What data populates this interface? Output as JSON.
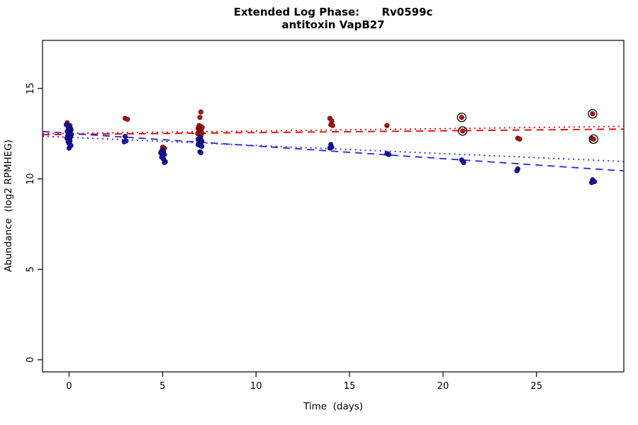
{
  "chart_data": {
    "type": "scatter",
    "title": "Extended Log Phase:      Rv0599c",
    "subtitle": "antitoxin VapB27",
    "xlabel": "Time  (days)",
    "ylabel": "Abundance  (log2 RPMHEG)",
    "x_range": [
      -1.42,
      29.67
    ],
    "y_range": [
      -0.67,
      17.66
    ],
    "x_ticks": [
      0,
      5,
      10,
      15,
      20,
      25
    ],
    "y_ticks": [
      0,
      5,
      10,
      15
    ],
    "grid": false,
    "legend": "none",
    "series": [
      {
        "name": "red-series",
        "point_color": "#b81414",
        "point_edge": "#3a0000",
        "points": [
          [
            -0.1,
            13.1
          ],
          [
            0.05,
            12.95
          ],
          [
            0,
            12.8
          ],
          [
            0.1,
            12.7
          ],
          [
            -0.05,
            12.6
          ],
          [
            0,
            12.5
          ],
          [
            0.08,
            12.45
          ],
          [
            -0.08,
            12.35
          ],
          [
            0,
            12.25
          ],
          [
            3,
            13.35
          ],
          [
            3.12,
            13.3
          ],
          [
            5,
            11.75
          ],
          [
            5.1,
            11.7
          ],
          [
            4.95,
            11.55
          ],
          [
            7.05,
            13.7
          ],
          [
            7,
            13.4
          ],
          [
            6.95,
            12.95
          ],
          [
            7.05,
            12.9
          ],
          [
            7.12,
            12.85
          ],
          [
            6.9,
            12.8
          ],
          [
            7,
            12.75
          ],
          [
            7.05,
            12.7
          ],
          [
            6.95,
            12.65
          ],
          [
            7,
            12.6
          ],
          [
            7.1,
            12.55
          ],
          [
            6.88,
            12.5
          ],
          [
            7,
            12.45
          ],
          [
            7.05,
            12.38
          ],
          [
            13.95,
            13.35
          ],
          [
            14.05,
            13.2
          ],
          [
            14,
            13.0
          ],
          [
            14.1,
            12.95
          ],
          [
            17,
            12.95
          ],
          [
            21,
            13.4
          ],
          [
            21.05,
            12.65
          ],
          [
            24,
            12.25
          ],
          [
            24.1,
            12.2
          ],
          [
            28,
            13.6
          ],
          [
            27.95,
            12.25
          ],
          [
            28.05,
            12.2
          ]
        ]
      },
      {
        "name": "blue-series",
        "point_color": "#1414b8",
        "point_edge": "#000030",
        "points": [
          [
            -0.15,
            13.0
          ],
          [
            0,
            12.9
          ],
          [
            -0.05,
            12.82
          ],
          [
            0.1,
            12.75
          ],
          [
            0,
            12.7
          ],
          [
            -0.1,
            12.62
          ],
          [
            0.05,
            12.55
          ],
          [
            0,
            12.5
          ],
          [
            0.12,
            12.45
          ],
          [
            -0.06,
            12.4
          ],
          [
            0,
            12.35
          ],
          [
            0.06,
            12.3
          ],
          [
            -0.12,
            12.25
          ],
          [
            0,
            12.2
          ],
          [
            0.05,
            12.1
          ],
          [
            -0.05,
            12.05
          ],
          [
            0,
            11.95
          ],
          [
            0.1,
            11.85
          ],
          [
            0,
            11.7
          ],
          [
            3,
            12.35
          ],
          [
            3.05,
            12.1
          ],
          [
            2.95,
            12.05
          ],
          [
            5,
            11.6
          ],
          [
            5.05,
            11.5
          ],
          [
            4.9,
            11.45
          ],
          [
            5.1,
            11.35
          ],
          [
            5,
            11.3
          ],
          [
            4.95,
            11.2
          ],
          [
            5.05,
            11.1
          ],
          [
            5.15,
            10.95
          ],
          [
            5.1,
            10.9
          ],
          [
            7,
            12.3
          ],
          [
            6.9,
            12.2
          ],
          [
            7.05,
            12.15
          ],
          [
            7.1,
            12.1
          ],
          [
            6.95,
            12.05
          ],
          [
            7,
            12.0
          ],
          [
            7.05,
            11.95
          ],
          [
            6.9,
            11.9
          ],
          [
            7,
            11.85
          ],
          [
            7.1,
            11.8
          ],
          [
            7,
            11.5
          ],
          [
            7.05,
            11.45
          ],
          [
            14,
            11.9
          ],
          [
            14.05,
            11.75
          ],
          [
            13.95,
            11.7
          ],
          [
            17,
            11.4
          ],
          [
            17.1,
            11.35
          ],
          [
            21,
            11.05
          ],
          [
            21.1,
            10.9
          ],
          [
            24,
            10.55
          ],
          [
            23.95,
            10.45
          ],
          [
            28,
            9.95
          ],
          [
            28.1,
            9.85
          ],
          [
            27.95,
            9.8
          ]
        ]
      }
    ],
    "trend_lines": [
      {
        "name": "red-dotted-fit",
        "color": "#e60000",
        "dash": "2 5",
        "intercept": 12.52,
        "slope": 0.013
      },
      {
        "name": "red-dashed-fit",
        "color": "#e60000",
        "dash": "10 7",
        "intercept": 12.46,
        "slope": 0.01
      },
      {
        "name": "blue-dotted-fit",
        "color": "#2626e6",
        "dash": "2 5",
        "intercept": 12.3,
        "slope": -0.045
      },
      {
        "name": "blue-dashed-fit",
        "color": "#2626e6",
        "dash": "10 7",
        "intercept": 12.52,
        "slope": -0.07
      }
    ],
    "circled_points": [
      [
        21,
        13.4
      ],
      [
        21.05,
        12.65
      ],
      [
        28,
        13.6
      ],
      [
        28.05,
        12.2
      ]
    ],
    "circle_marker": {
      "color": "#000000",
      "radius": 6
    }
  }
}
